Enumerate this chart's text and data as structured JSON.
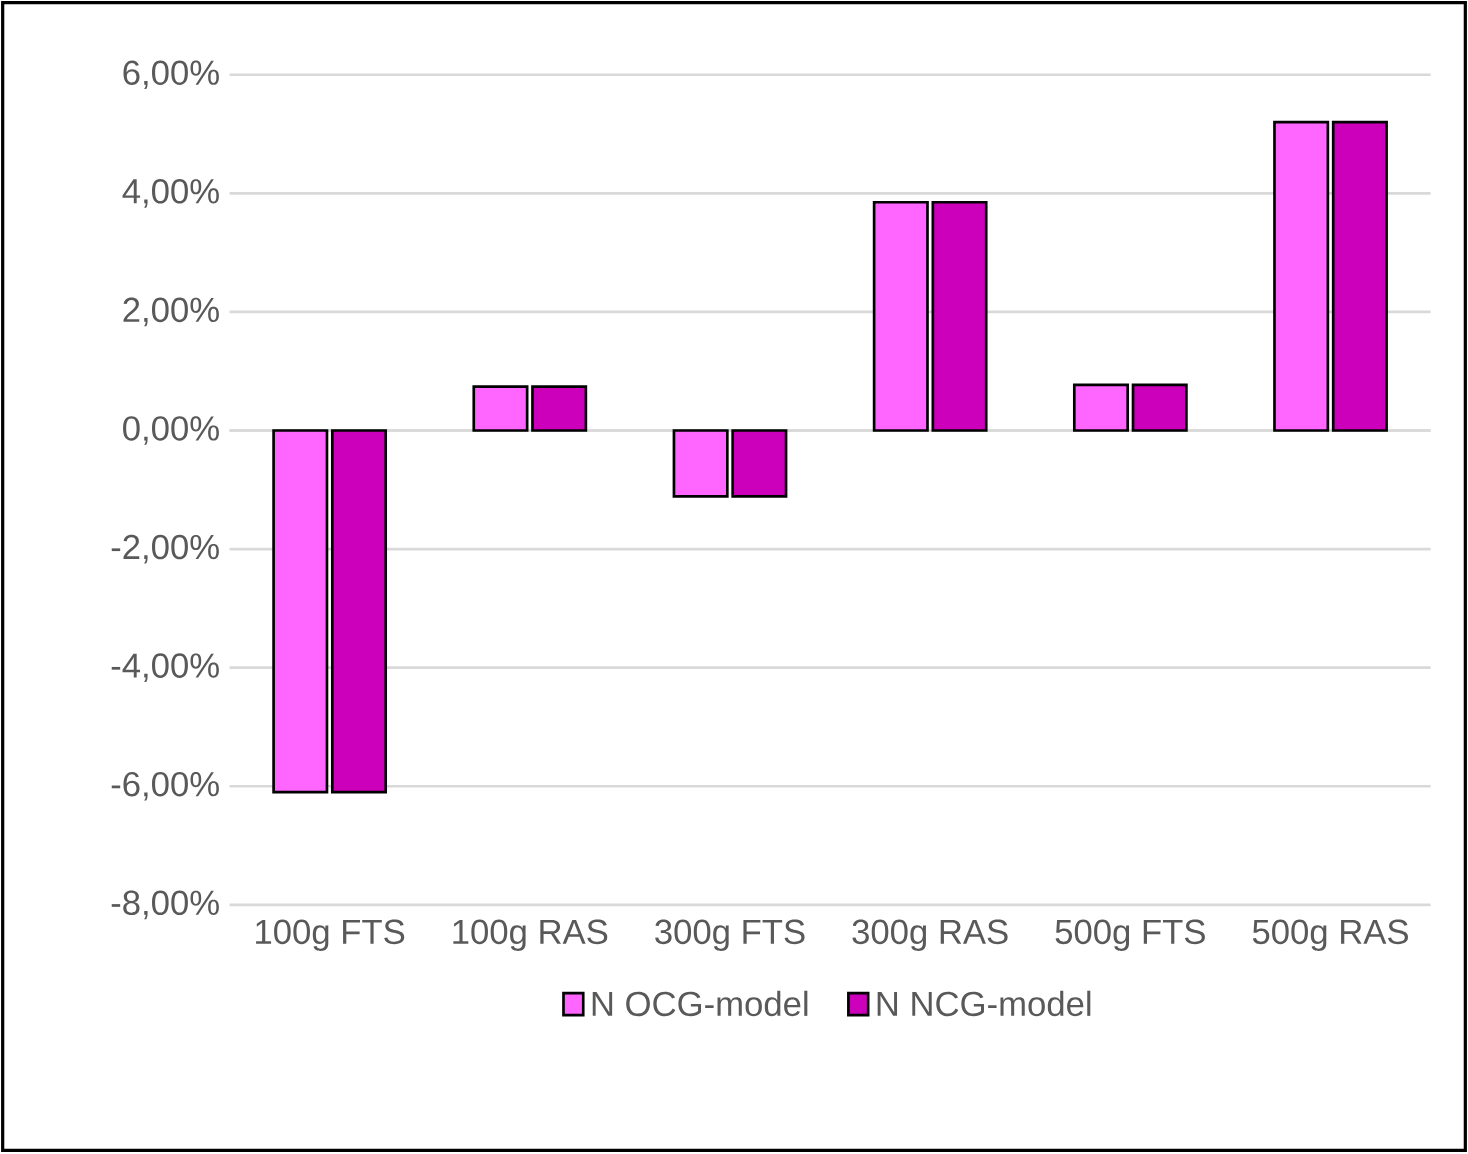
{
  "chart_data": {
    "type": "bar",
    "categories": [
      "100g FTS",
      "100g RAS",
      "300g FTS",
      "300g RAS",
      "500g FTS",
      "500g RAS"
    ],
    "series": [
      {
        "name": "N OCG-model",
        "color": "#ff66ff",
        "values": [
          -6.1,
          0.74,
          -1.11,
          3.85,
          0.77,
          5.2
        ]
      },
      {
        "name": "N NCG-model",
        "color": "#cc00bb",
        "values": [
          -6.1,
          0.74,
          -1.11,
          3.85,
          0.77,
          5.2
        ]
      }
    ],
    "ylim": [
      -8,
      6
    ],
    "yticks": [
      {
        "value": -8,
        "label": "-8,00%"
      },
      {
        "value": -6,
        "label": "-6,00%"
      },
      {
        "value": -4,
        "label": "-4,00%"
      },
      {
        "value": -2,
        "label": "-2,00%"
      },
      {
        "value": 0,
        "label": "0,00%"
      },
      {
        "value": 2,
        "label": "2,00%"
      },
      {
        "value": 4,
        "label": "4,00%"
      },
      {
        "value": 6,
        "label": "6,00%"
      }
    ],
    "grid": "y",
    "legend": "bottom"
  }
}
